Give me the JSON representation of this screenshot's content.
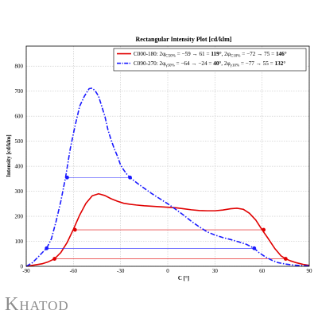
{
  "logo": {
    "first": "K",
    "rest": "HATOD"
  },
  "chart_data": {
    "type": "line",
    "title": "Rectangular Intensity Plot [cd/klm]",
    "xlabel": "C [°]",
    "ylabel": "Intensity [cd/klm]",
    "xlim": [
      -90,
      90
    ],
    "ylim": [
      0,
      880
    ],
    "xticks": [
      -90,
      -60,
      -30,
      0,
      30,
      60,
      90
    ],
    "yticks": [
      0,
      100,
      200,
      300,
      400,
      500,
      600,
      700,
      800
    ],
    "grid": true,
    "legend_position": "top-right",
    "colors": {
      "red": "#e00000",
      "blue": "#1a1aff",
      "grid": "#b8b8b8",
      "logo": "#8d8d8d"
    },
    "series": [
      {
        "name": "C000-180",
        "legend": {
          "prefix": "C000-180: 2φ",
          "sub1": "C50%",
          "mid1": " = −59 → 61 = ",
          "bold1": "119°",
          "sep": ", 2φ",
          "sub2": "C10%",
          "mid2": " = −72 → 75 = ",
          "bold2": "146°"
        },
        "color": "#e00000",
        "style": "solid",
        "x": [
          -90,
          -85,
          -80,
          -76,
          -72,
          -68,
          -64,
          -60,
          -56,
          -52,
          -48,
          -44,
          -40,
          -36,
          -32,
          -28,
          -24,
          -20,
          -15,
          -10,
          -5,
          0,
          5,
          10,
          15,
          20,
          25,
          30,
          35,
          40,
          44,
          48,
          52,
          56,
          60,
          64,
          68,
          72,
          75,
          78,
          82,
          86,
          90
        ],
        "y": [
          0,
          5,
          10,
          18,
          30,
          55,
          95,
          148,
          205,
          252,
          282,
          290,
          283,
          270,
          260,
          252,
          248,
          245,
          242,
          240,
          238,
          236,
          234,
          230,
          226,
          223,
          222,
          222,
          225,
          230,
          232,
          228,
          212,
          185,
          146,
          110,
          72,
          42,
          30,
          22,
          14,
          8,
          4
        ],
        "markers": [
          [
            -72,
            30
          ],
          [
            -59,
            146
          ],
          [
            61,
            146
          ],
          [
            75,
            30
          ]
        ],
        "markers_y_labels": [],
        "width_lines": [
          {
            "x1": -59,
            "x2": 61,
            "y": 146
          },
          {
            "x1": -72,
            "x2": 75,
            "y": 30
          }
        ]
      },
      {
        "name": "C090-270",
        "legend": {
          "prefix": "C090-270: 2φ",
          "sub1": "γ50%",
          "mid1": " = −64 → −24 = ",
          "bold1": "40°",
          "sep": ", 2φ",
          "sub2": "γ10%",
          "mid2": " = −77 → 55 = ",
          "bold2": "132°"
        },
        "color": "#1a1aff",
        "style": "dashdot",
        "x": [
          -90,
          -86,
          -82,
          -79,
          -77,
          -74,
          -71,
          -68,
          -65,
          -62,
          -59,
          -56,
          -53,
          -50,
          -48,
          -46,
          -44,
          -42,
          -40,
          -38,
          -36,
          -34,
          -32,
          -30,
          -28,
          -26,
          -24,
          -20,
          -15,
          -10,
          -5,
          0,
          5,
          10,
          15,
          20,
          25,
          30,
          35,
          40,
          45,
          50,
          55,
          58,
          62,
          66,
          70,
          75,
          80,
          85,
          90
        ],
        "y": [
          0,
          15,
          40,
          60,
          72,
          110,
          180,
          260,
          355,
          470,
          560,
          640,
          680,
          710,
          712,
          700,
          680,
          640,
          600,
          545,
          505,
          470,
          440,
          405,
          385,
          368,
          355,
          335,
          312,
          290,
          270,
          250,
          228,
          205,
          180,
          158,
          138,
          125,
          115,
          107,
          98,
          88,
          72,
          55,
          38,
          25,
          15,
          9,
          5,
          3,
          2
        ],
        "markers": [
          [
            -77,
            72
          ],
          [
            -64,
            355
          ],
          [
            -24,
            355
          ],
          [
            55,
            72
          ]
        ],
        "width_lines": [
          {
            "x1": -64,
            "x2": -24,
            "y": 355
          },
          {
            "x1": -77,
            "x2": 55,
            "y": 72
          }
        ]
      }
    ]
  }
}
